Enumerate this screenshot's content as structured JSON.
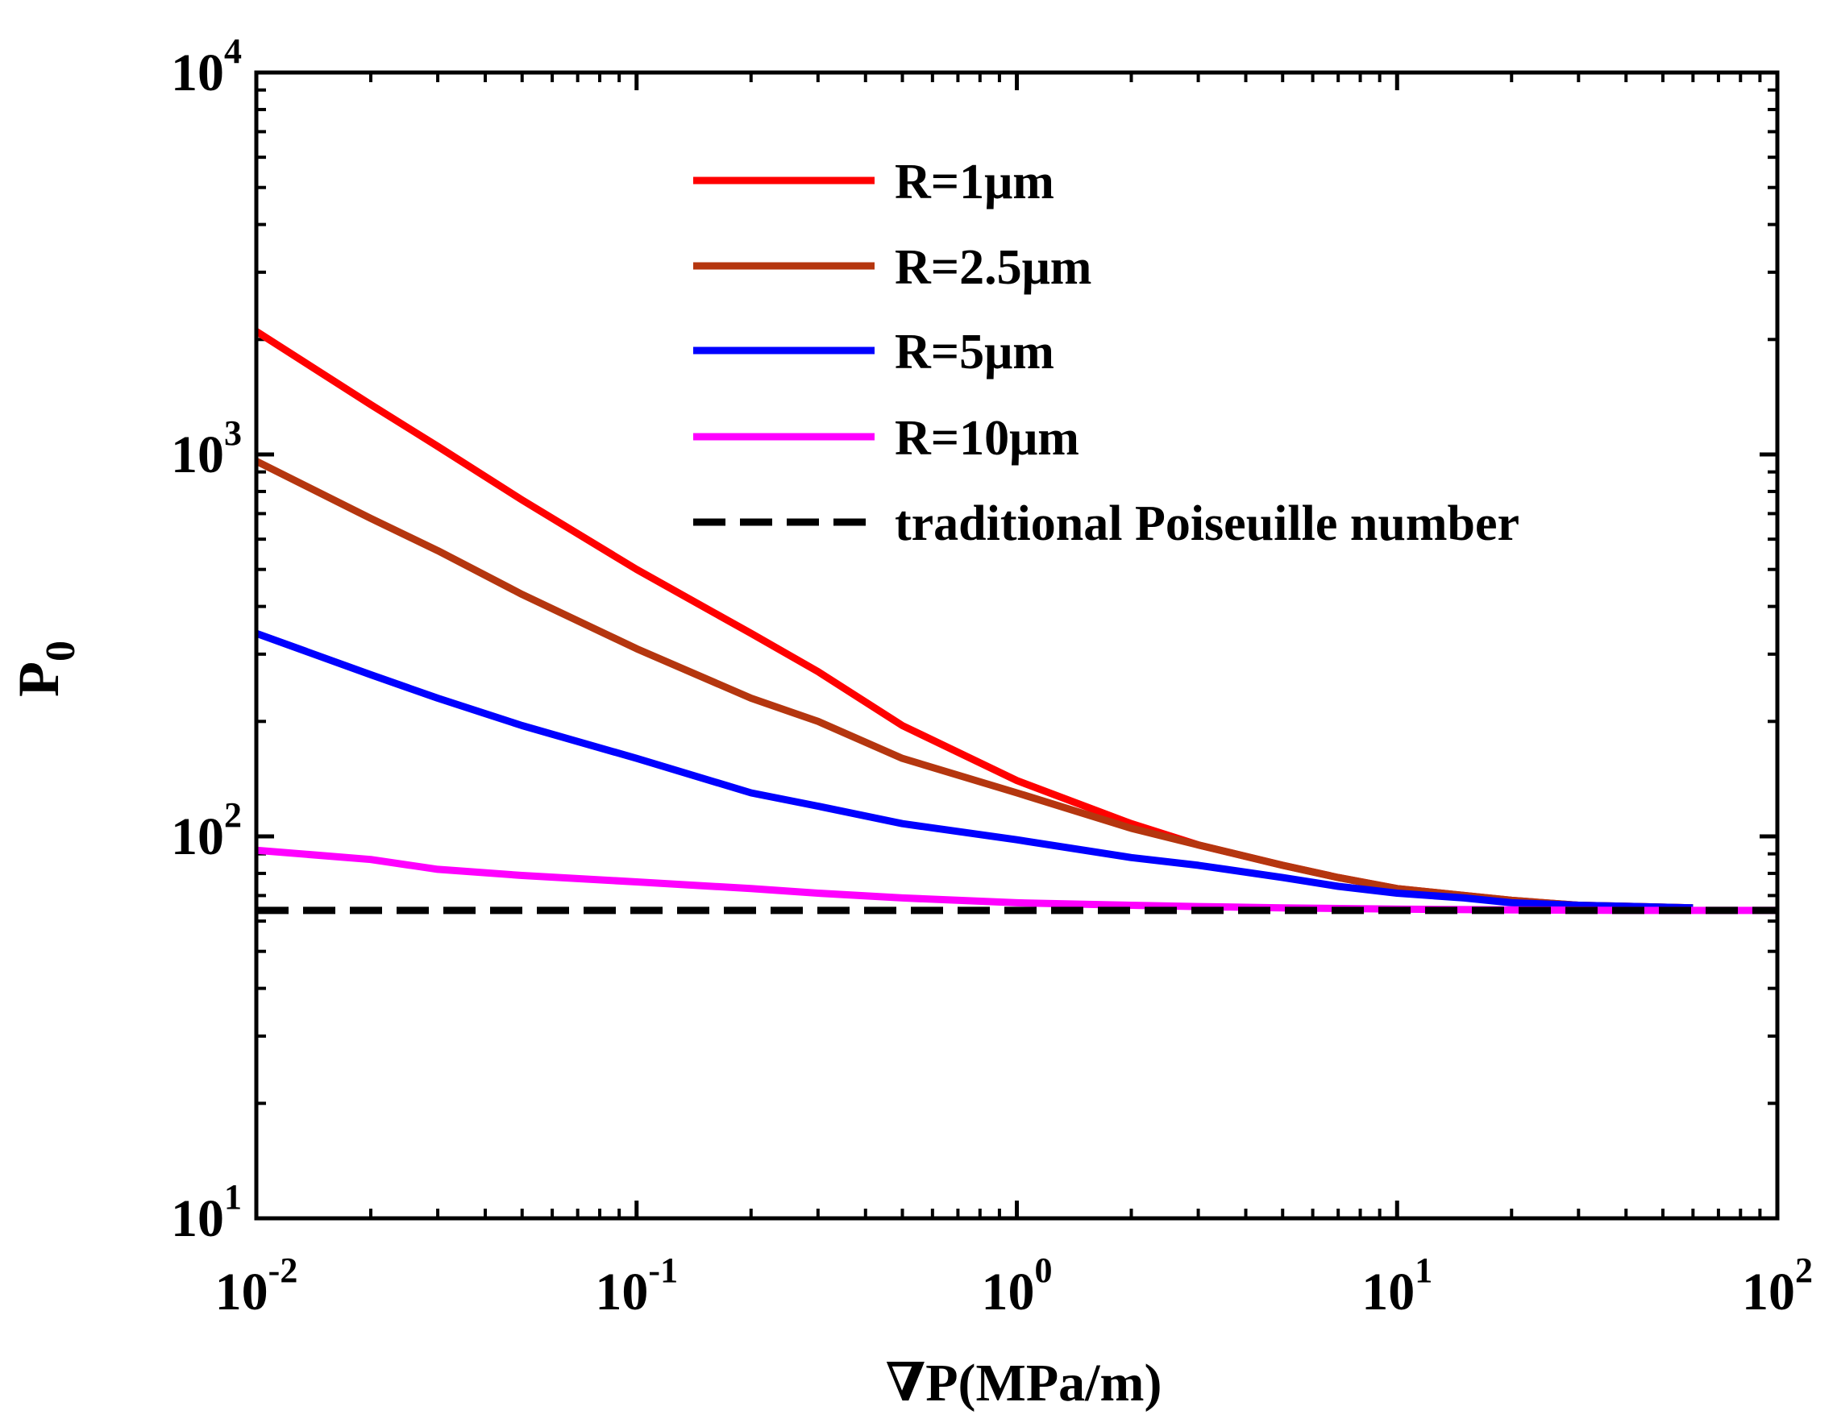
{
  "chart_data": {
    "type": "line",
    "title": "",
    "xlabel": "∇P(MPa/m)",
    "ylabel_main": "P",
    "ylabel_sub": "0",
    "xscale": "log",
    "yscale": "log",
    "xlim": [
      0.01,
      100
    ],
    "ylim": [
      10,
      10000
    ],
    "grid": false,
    "legend_position": "top-right",
    "xticks": [
      {
        "base": "10",
        "exp": "-2",
        "value": 0.01
      },
      {
        "base": "10",
        "exp": "-1",
        "value": 0.1
      },
      {
        "base": "10",
        "exp": "0",
        "value": 1
      },
      {
        "base": "10",
        "exp": "1",
        "value": 10
      },
      {
        "base": "10",
        "exp": "2",
        "value": 100
      }
    ],
    "yticks": [
      {
        "base": "10",
        "exp": "1",
        "value": 10
      },
      {
        "base": "10",
        "exp": "2",
        "value": 100
      },
      {
        "base": "10",
        "exp": "3",
        "value": 1000
      },
      {
        "base": "10",
        "exp": "4",
        "value": 10000
      }
    ],
    "series": [
      {
        "name": "R=1μm",
        "color": "#ff0000",
        "dash": "solid",
        "x": [
          0.01,
          0.02,
          0.03,
          0.05,
          0.1,
          0.2,
          0.3,
          0.5,
          1,
          2,
          3,
          5,
          7,
          10,
          15,
          20,
          30,
          60
        ],
        "y": [
          2100,
          1350,
          1050,
          760,
          500,
          340,
          270,
          195,
          140,
          108,
          95,
          84,
          78,
          73,
          70,
          68,
          66,
          65
        ]
      },
      {
        "name": "R=2.5μm",
        "color": "#b5360f",
        "dash": "solid",
        "x": [
          0.01,
          0.02,
          0.03,
          0.05,
          0.1,
          0.2,
          0.3,
          0.5,
          1,
          2,
          3,
          5,
          7,
          10,
          15,
          20,
          30,
          60
        ],
        "y": [
          960,
          680,
          560,
          430,
          310,
          230,
          200,
          160,
          130,
          105,
          95,
          84,
          78,
          73,
          70,
          68,
          66,
          65
        ]
      },
      {
        "name": "R=5μm",
        "color": "#0000ff",
        "dash": "solid",
        "x": [
          0.01,
          0.02,
          0.03,
          0.05,
          0.1,
          0.2,
          0.3,
          0.5,
          1,
          2,
          3,
          5,
          7,
          10,
          15,
          20,
          30,
          60
        ],
        "y": [
          340,
          265,
          230,
          195,
          160,
          130,
          120,
          108,
          98,
          88,
          84,
          78,
          74,
          71,
          69,
          67,
          66,
          65
        ]
      },
      {
        "name": "R=10μm",
        "color": "#ff00ff",
        "dash": "solid",
        "x": [
          0.01,
          0.02,
          0.03,
          0.05,
          0.1,
          0.2,
          0.3,
          0.5,
          1,
          2,
          3,
          5,
          10,
          20,
          40,
          60,
          100
        ],
        "y": [
          92,
          87,
          82,
          79,
          76,
          73,
          71,
          69,
          67,
          66,
          65.5,
          65,
          64.5,
          64.2,
          64,
          64,
          64
        ]
      },
      {
        "name": "traditional Poiseuille number",
        "color": "#000000",
        "dash": "dashed",
        "x": [
          0.01,
          100
        ],
        "y": [
          64,
          64
        ]
      }
    ]
  }
}
